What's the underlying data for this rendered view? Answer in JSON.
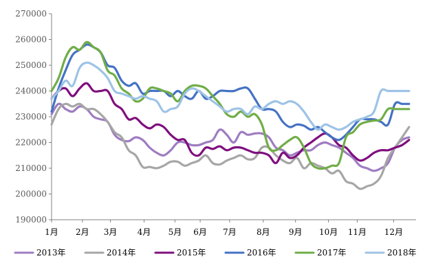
{
  "chart_data": {
    "type": "line",
    "title": "",
    "xlabel": "",
    "ylabel": "",
    "ylim": [
      190000,
      270000
    ],
    "yticks": [
      190000,
      200000,
      210000,
      220000,
      230000,
      240000,
      250000,
      260000,
      270000
    ],
    "ytick_labels": [
      "190000",
      "200000",
      "210000",
      "220000",
      "230000",
      "240000",
      "250000",
      "260000",
      "270000"
    ],
    "x_range": [
      1,
      53
    ],
    "month_labels": [
      "1月",
      "2月",
      "3月",
      "4月",
      "5月",
      "6月",
      "7月",
      "8月",
      "9月",
      "10月",
      "11月",
      "12月"
    ],
    "month_positions": [
      1,
      5.4,
      9.4,
      14.2,
      18.6,
      22.2,
      26.4,
      31.2,
      35.8,
      40.5,
      44.6,
      49.8
    ],
    "grid": false,
    "legend_position": "bottom",
    "series": [
      {
        "name": "2013年",
        "color": "#9E7CC1",
        "x": [
          1,
          2,
          3,
          4,
          5,
          6,
          7,
          8,
          9,
          10,
          11,
          12,
          13,
          14,
          15,
          16,
          17,
          18,
          19,
          20,
          21,
          22,
          23,
          24,
          25,
          26,
          27,
          28,
          29,
          30,
          31,
          32,
          33,
          34,
          35,
          36,
          37,
          38,
          39,
          40,
          41,
          42,
          43,
          44,
          45,
          46,
          47,
          48,
          49,
          50,
          51,
          52
        ],
        "values": [
          231000,
          235000,
          233000,
          232000,
          234000,
          233000,
          230000,
          229000,
          228000,
          223000,
          221000,
          220500,
          222000,
          221000,
          218000,
          216000,
          215000,
          217000,
          220000,
          220000,
          219000,
          219000,
          220000,
          221000,
          225000,
          223000,
          220000,
          224000,
          223000,
          223500,
          223500,
          222000,
          218000,
          217000,
          215000,
          216000,
          217000,
          217000,
          219000,
          220000,
          219000,
          218000,
          216000,
          214000,
          211000,
          210000,
          209000,
          210000,
          212000,
          218000,
          221000,
          222000
        ]
      },
      {
        "name": "2014年",
        "color": "#A6A6A6",
        "x": [
          1,
          2,
          3,
          4,
          5,
          6,
          7,
          8,
          9,
          10,
          11,
          12,
          13,
          14,
          15,
          16,
          17,
          18,
          19,
          20,
          21,
          22,
          23,
          24,
          25,
          26,
          27,
          28,
          29,
          30,
          31,
          32,
          33,
          34,
          35,
          36,
          37,
          38,
          39,
          40,
          41,
          42,
          43,
          44,
          45,
          46,
          47,
          48,
          49,
          50,
          51,
          52
        ],
        "values": [
          227000,
          233000,
          235000,
          234000,
          235000,
          233000,
          233000,
          231000,
          228000,
          224000,
          222000,
          217000,
          215000,
          210500,
          210500,
          210000,
          211000,
          212500,
          212500,
          211000,
          212000,
          213000,
          215000,
          212000,
          211500,
          213000,
          214000,
          215000,
          213500,
          214000,
          218000,
          218000,
          215000,
          213000,
          212000,
          214000,
          210000,
          212000,
          211000,
          210000,
          208000,
          209000,
          205000,
          204000,
          202000,
          203000,
          204000,
          207000,
          214000,
          218000,
          222000,
          226000
        ]
      },
      {
        "name": "2015年",
        "color": "#7F0F7E",
        "x": [
          1,
          2,
          3,
          4,
          5,
          6,
          7,
          8,
          9,
          10,
          11,
          12,
          13,
          14,
          15,
          16,
          17,
          18,
          19,
          20,
          21,
          22,
          23,
          24,
          25,
          26,
          27,
          28,
          29,
          30,
          31,
          32,
          33,
          34,
          35,
          36,
          37,
          38,
          39,
          40,
          41,
          42,
          43,
          44,
          45,
          46,
          47,
          48,
          49,
          50,
          51,
          52
        ],
        "values": [
          237000,
          240000,
          241000,
          238000,
          241000,
          243000,
          240000,
          240000,
          240000,
          235000,
          233000,
          229000,
          229500,
          227000,
          225500,
          227000,
          226000,
          223000,
          221000,
          221000,
          216000,
          215000,
          218000,
          217500,
          218500,
          217000,
          218000,
          218000,
          217000,
          216000,
          216000,
          215000,
          212000,
          216000,
          214000,
          215000,
          218000,
          220000,
          222000,
          223500,
          222000,
          219000,
          218000,
          215000,
          213000,
          214000,
          216000,
          217000,
          217000,
          218000,
          219000,
          221000
        ]
      },
      {
        "name": "2016年",
        "color": "#4472C4",
        "x": [
          1,
          2,
          3,
          4,
          5,
          6,
          7,
          8,
          9,
          10,
          11,
          12,
          13,
          14,
          15,
          16,
          17,
          18,
          19,
          20,
          21,
          22,
          23,
          24,
          25,
          26,
          27,
          28,
          29,
          30,
          31,
          32,
          33,
          34,
          35,
          36,
          37,
          38,
          39,
          40,
          41,
          42,
          43,
          44,
          45,
          46,
          47,
          48,
          49,
          50,
          51,
          52
        ],
        "values": [
          232000,
          241000,
          248000,
          254000,
          256000,
          258000,
          257000,
          255000,
          250000,
          249000,
          244000,
          242000,
          243000,
          239000,
          240000,
          240000,
          240000,
          238000,
          240000,
          238000,
          237000,
          240000,
          237000,
          238000,
          240000,
          240000,
          240000,
          241000,
          241000,
          237000,
          233000,
          233000,
          232000,
          228000,
          226000,
          227000,
          226500,
          225000,
          226000,
          224000,
          222000,
          221000,
          223000,
          226000,
          229000,
          229000,
          229000,
          228000,
          227000,
          235000,
          235000,
          235000
        ]
      },
      {
        "name": "2017年",
        "color": "#70AD47",
        "x": [
          1,
          2,
          3,
          4,
          5,
          6,
          7,
          8,
          9,
          10,
          11,
          12,
          13,
          14,
          15,
          16,
          17,
          18,
          19,
          20,
          21,
          22,
          23,
          24,
          25,
          26,
          27,
          28,
          29,
          30,
          31,
          32,
          33,
          34,
          35,
          36,
          37,
          38,
          39,
          40,
          41,
          42,
          43,
          44,
          45,
          46,
          47,
          48,
          49,
          50,
          51,
          52
        ],
        "values": [
          240000,
          245000,
          253000,
          257000,
          256000,
          259000,
          257000,
          255000,
          248000,
          246000,
          241000,
          239000,
          236000,
          237000,
          241000,
          241000,
          240000,
          239000,
          236000,
          240000,
          242000,
          242000,
          241000,
          238000,
          235000,
          231000,
          230000,
          232000,
          230000,
          231000,
          227000,
          218000,
          217000,
          219000,
          221000,
          222000,
          218000,
          212000,
          210000,
          210000,
          211000,
          212000,
          222000,
          224000,
          227000,
          228000,
          228500,
          229000,
          233000,
          233000,
          233000,
          233000
        ]
      },
      {
        "name": "2018年",
        "color": "#9DC3E6",
        "x": [
          1,
          2,
          3,
          4,
          5,
          6,
          7,
          8,
          9,
          10,
          11,
          12,
          13,
          14,
          15,
          16,
          17,
          18,
          19,
          20,
          21,
          22,
          23,
          24,
          25,
          26,
          27,
          28,
          29,
          30,
          31,
          32,
          33,
          34,
          35,
          36,
          37,
          38,
          39,
          40,
          41,
          42,
          43,
          44,
          45,
          46,
          47,
          48,
          49,
          50,
          51,
          52
        ],
        "values": [
          237000,
          240000,
          244000,
          242000,
          249000,
          251000,
          250000,
          248000,
          245000,
          240000,
          239000,
          238000,
          237000,
          238000,
          237000,
          236000,
          232000,
          233000,
          234000,
          239000,
          241000,
          240000,
          238000,
          236000,
          234000,
          232000,
          233000,
          233000,
          231000,
          234000,
          233000,
          235000,
          236000,
          235000,
          236000,
          235000,
          232000,
          228000,
          225000,
          227000,
          226000,
          225000,
          226000,
          228000,
          229000,
          230000,
          232000,
          240000,
          240000,
          240000,
          240000,
          240000
        ]
      }
    ]
  }
}
